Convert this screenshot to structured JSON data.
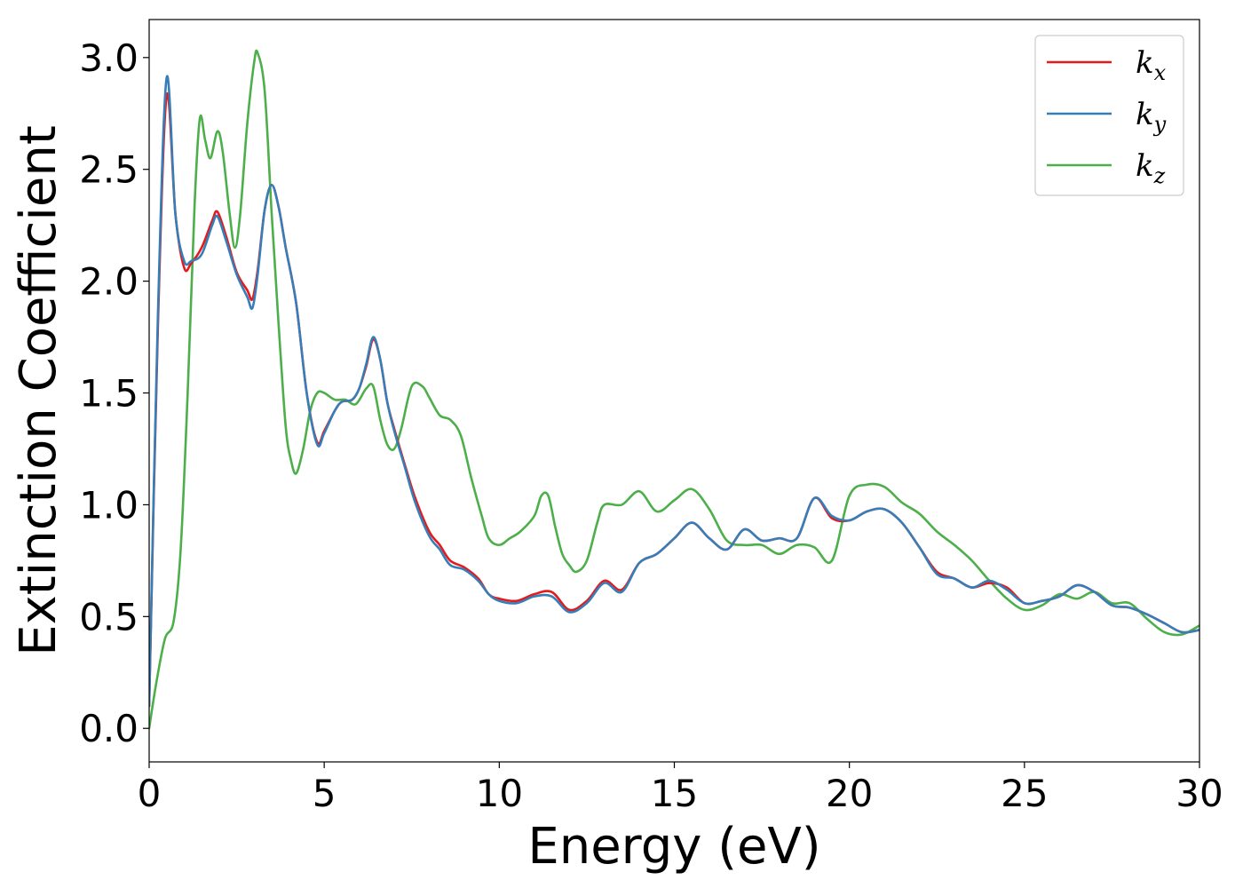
{
  "chart_data": {
    "type": "line",
    "title": "",
    "xlabel": "Energy (eV)",
    "ylabel": "Extinction Coefficient",
    "xlim": [
      0,
      30
    ],
    "ylim": [
      -0.15,
      3.17
    ],
    "xticks": [
      0,
      5,
      10,
      15,
      20,
      25,
      30
    ],
    "xtick_labels": [
      "0",
      "5",
      "10",
      "15",
      "20",
      "25",
      "30"
    ],
    "yticks": [
      0.0,
      0.5,
      1.0,
      1.5,
      2.0,
      2.5,
      3.0
    ],
    "ytick_labels": [
      "0.0",
      "0.5",
      "1.0",
      "1.5",
      "2.0",
      "2.5",
      "3.0"
    ],
    "grid": false,
    "legend_position": "top-right",
    "series": [
      {
        "name": "k",
        "subscript": "x",
        "color": "#e41a1c",
        "x": [
          0,
          0.25,
          0.5,
          0.75,
          1.0,
          1.2,
          1.5,
          1.8,
          1.95,
          2.2,
          2.5,
          2.8,
          2.95,
          3.1,
          3.3,
          3.5,
          3.7,
          3.9,
          4.2,
          4.5,
          4.8,
          5.0,
          5.3,
          5.5,
          5.8,
          6.0,
          6.2,
          6.4,
          6.6,
          6.8,
          7.0,
          7.3,
          7.6,
          8.0,
          8.3,
          8.6,
          9.0,
          9.4,
          9.7,
          10.0,
          10.5,
          11.0,
          11.5,
          12.0,
          12.5,
          13.0,
          13.5,
          14.0,
          14.5,
          15.0,
          15.5,
          16.0,
          16.5,
          17.0,
          17.5,
          18.0,
          18.5,
          19.0,
          19.5,
          20.0,
          20.5,
          21.0,
          21.5,
          22.0,
          22.5,
          23.0,
          23.5,
          24.0,
          24.5,
          25.0,
          25.5,
          26.0,
          26.5,
          27.0,
          27.5,
          28.0,
          28.5,
          29.0,
          29.5,
          30.0
        ],
        "y": [
          0.1,
          1.8,
          2.83,
          2.3,
          2.06,
          2.08,
          2.15,
          2.27,
          2.31,
          2.2,
          2.04,
          1.96,
          1.92,
          2.05,
          2.32,
          2.43,
          2.33,
          2.15,
          1.9,
          1.5,
          1.28,
          1.33,
          1.42,
          1.46,
          1.47,
          1.52,
          1.62,
          1.74,
          1.65,
          1.46,
          1.34,
          1.18,
          1.03,
          0.88,
          0.82,
          0.75,
          0.72,
          0.67,
          0.6,
          0.58,
          0.57,
          0.6,
          0.61,
          0.53,
          0.57,
          0.66,
          0.62,
          0.74,
          0.78,
          0.85,
          0.92,
          0.85,
          0.8,
          0.89,
          0.84,
          0.85,
          0.85,
          1.03,
          0.94,
          0.93,
          0.97,
          0.98,
          0.92,
          0.81,
          0.7,
          0.67,
          0.63,
          0.65,
          0.63,
          0.56,
          0.57,
          0.59,
          0.64,
          0.61,
          0.55,
          0.54,
          0.51,
          0.47,
          0.43,
          0.44
        ]
      },
      {
        "name": "k",
        "subscript": "y",
        "color": "#377eb8",
        "x": [
          0,
          0.25,
          0.5,
          0.75,
          1.0,
          1.2,
          1.5,
          1.8,
          1.95,
          2.2,
          2.5,
          2.8,
          2.95,
          3.1,
          3.3,
          3.5,
          3.7,
          3.9,
          4.2,
          4.5,
          4.8,
          5.0,
          5.3,
          5.5,
          5.8,
          6.0,
          6.2,
          6.4,
          6.6,
          6.8,
          7.0,
          7.3,
          7.6,
          8.0,
          8.3,
          8.6,
          9.0,
          9.4,
          9.7,
          10.0,
          10.5,
          11.0,
          11.5,
          12.0,
          12.5,
          13.0,
          13.5,
          14.0,
          14.5,
          15.0,
          15.5,
          16.0,
          16.5,
          17.0,
          17.5,
          18.0,
          18.5,
          19.0,
          19.5,
          20.0,
          20.5,
          21.0,
          21.5,
          22.0,
          22.5,
          23.0,
          23.5,
          24.0,
          24.5,
          25.0,
          25.5,
          26.0,
          26.5,
          27.0,
          27.5,
          28.0,
          28.5,
          29.0,
          29.5,
          30.0
        ],
        "y": [
          0.1,
          1.85,
          2.91,
          2.3,
          2.09,
          2.09,
          2.12,
          2.25,
          2.29,
          2.18,
          2.03,
          1.93,
          1.88,
          2.03,
          2.32,
          2.43,
          2.33,
          2.15,
          1.9,
          1.5,
          1.27,
          1.32,
          1.42,
          1.46,
          1.47,
          1.52,
          1.63,
          1.75,
          1.65,
          1.46,
          1.33,
          1.17,
          1.01,
          0.86,
          0.8,
          0.73,
          0.71,
          0.66,
          0.6,
          0.57,
          0.56,
          0.59,
          0.59,
          0.52,
          0.56,
          0.65,
          0.61,
          0.74,
          0.78,
          0.85,
          0.92,
          0.85,
          0.8,
          0.89,
          0.84,
          0.85,
          0.85,
          1.03,
          0.95,
          0.93,
          0.97,
          0.98,
          0.92,
          0.81,
          0.69,
          0.67,
          0.63,
          0.66,
          0.62,
          0.56,
          0.57,
          0.59,
          0.64,
          0.61,
          0.55,
          0.54,
          0.51,
          0.47,
          0.43,
          0.44
        ]
      },
      {
        "name": "k",
        "subscript": "z",
        "color": "#4daf4a",
        "x": [
          0,
          0.2,
          0.45,
          0.7,
          0.9,
          1.1,
          1.3,
          1.45,
          1.6,
          1.75,
          1.95,
          2.1,
          2.3,
          2.45,
          2.6,
          2.8,
          3.0,
          3.1,
          3.3,
          3.5,
          3.7,
          3.9,
          4.05,
          4.2,
          4.4,
          4.6,
          4.8,
          5.0,
          5.3,
          5.6,
          5.9,
          6.2,
          6.4,
          6.6,
          6.8,
          7.0,
          7.2,
          7.5,
          7.8,
          8.0,
          8.3,
          8.6,
          8.9,
          9.2,
          9.5,
          9.7,
          10.0,
          10.3,
          10.6,
          11.0,
          11.2,
          11.4,
          11.6,
          11.8,
          12.0,
          12.2,
          12.5,
          12.8,
          13.0,
          13.5,
          14.0,
          14.5,
          15.0,
          15.5,
          16.0,
          16.5,
          17.0,
          17.5,
          18.0,
          18.5,
          19.0,
          19.5,
          20.0,
          20.5,
          21.0,
          21.5,
          22.0,
          22.5,
          23.0,
          23.5,
          24.0,
          24.5,
          25.0,
          25.5,
          26.0,
          26.5,
          27.0,
          27.5,
          28.0,
          28.5,
          29.0,
          29.5,
          30.0
        ],
        "y": [
          0.0,
          0.2,
          0.4,
          0.48,
          0.8,
          1.5,
          2.35,
          2.73,
          2.63,
          2.55,
          2.67,
          2.58,
          2.3,
          2.15,
          2.3,
          2.7,
          2.98,
          3.02,
          2.85,
          2.3,
          1.8,
          1.35,
          1.2,
          1.14,
          1.25,
          1.42,
          1.5,
          1.5,
          1.47,
          1.47,
          1.45,
          1.52,
          1.53,
          1.38,
          1.27,
          1.25,
          1.34,
          1.53,
          1.53,
          1.48,
          1.4,
          1.38,
          1.31,
          1.12,
          0.95,
          0.85,
          0.82,
          0.85,
          0.88,
          0.95,
          1.04,
          1.04,
          0.9,
          0.78,
          0.73,
          0.7,
          0.75,
          0.92,
          1.0,
          1.0,
          1.06,
          0.97,
          1.02,
          1.07,
          0.98,
          0.84,
          0.82,
          0.82,
          0.78,
          0.82,
          0.81,
          0.75,
          1.04,
          1.09,
          1.08,
          1.01,
          0.96,
          0.88,
          0.82,
          0.75,
          0.66,
          0.58,
          0.53,
          0.55,
          0.6,
          0.58,
          0.61,
          0.56,
          0.56,
          0.49,
          0.43,
          0.42,
          0.46
        ]
      }
    ]
  }
}
